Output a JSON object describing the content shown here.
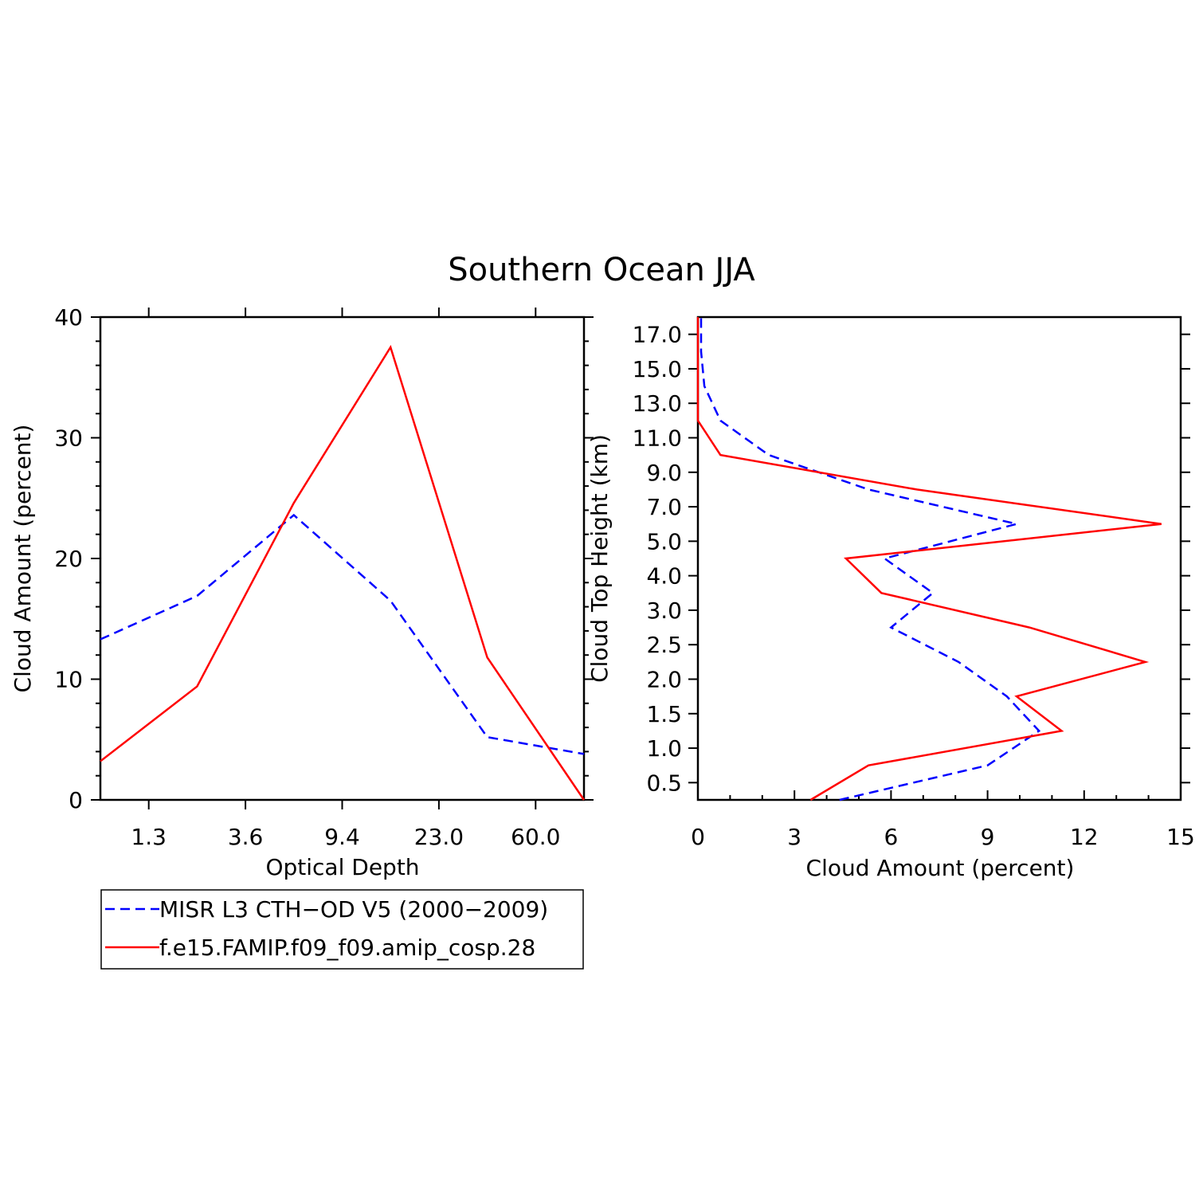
{
  "title": "Southern Ocean JJA",
  "colors": {
    "misr": "#0000ff",
    "model": "#ff0000"
  },
  "legend": {
    "items": [
      {
        "label": "MISR L3 CTH−OD V5 (2000−2009)",
        "color": "#0000ff",
        "style": "dashed"
      },
      {
        "label": "f.e15.FAMIP.f09_f09.amip_cosp.28",
        "color": "#ff0000",
        "style": "solid"
      }
    ]
  },
  "chart_data": [
    {
      "type": "line",
      "xlabel": "Optical Depth",
      "ylabel": "Cloud Amount (percent)",
      "ylim": [
        0,
        40
      ],
      "yticks": [
        "0",
        "10",
        "20",
        "30",
        "40"
      ],
      "x_categories": [
        "0.15",
        "1.3",
        "2.45",
        "3.6",
        "6.5",
        "9.4",
        "16.2",
        "23.0",
        "41.5",
        "60.0",
        "100.0"
      ],
      "xtick_labels": [
        "1.3",
        "3.6",
        "9.4",
        "23.0",
        "60.0"
      ],
      "series": [
        {
          "name": "MISR L3 CTH−OD V5 (2000−2009)",
          "color": "#0000ff",
          "dashed": true,
          "points": [
            [
              "0.15",
              13.3
            ],
            [
              "2.45",
              16.9
            ],
            [
              "6.5",
              23.6
            ],
            [
              "16.2",
              16.5
            ],
            [
              "41.5",
              5.2
            ],
            [
              "100.0",
              3.8
            ]
          ]
        },
        {
          "name": "f.e15.FAMIP.f09_f09.amip_cosp.28",
          "color": "#ff0000",
          "dashed": false,
          "points": [
            [
              "0.15",
              3.2
            ],
            [
              "2.45",
              9.4
            ],
            [
              "6.5",
              24.6
            ],
            [
              "16.2",
              37.5
            ],
            [
              "41.5",
              11.8
            ],
            [
              "100.0",
              0.0
            ]
          ]
        }
      ]
    },
    {
      "type": "line",
      "xlabel": "Cloud Amount (percent)",
      "ylabel": "Cloud Top Height (km)",
      "xlim": [
        0,
        15
      ],
      "xticks": [
        "0",
        "3",
        "6",
        "9",
        "12",
        "15"
      ],
      "height_levels": [
        "0.25",
        "0.5",
        "0.75",
        "1.0",
        "1.25",
        "1.5",
        "1.75",
        "2.0",
        "2.25",
        "2.5",
        "2.75",
        "3.0",
        "3.5",
        "4.0",
        "4.5",
        "5.0",
        "6.0",
        "7.0",
        "8.0",
        "9.0",
        "10.0",
        "11.0",
        "12.0",
        "13.0",
        "14.0",
        "15.0",
        "16.0",
        "17.0",
        "17.5"
      ],
      "ytick_labels": [
        "0.5",
        "1.0",
        "1.5",
        "2.0",
        "2.5",
        "3.0",
        "4.0",
        "5.0",
        "7.0",
        "9.0",
        "11.0",
        "13.0",
        "15.0",
        "17.0"
      ],
      "series": [
        {
          "name": "MISR L3 CTH−OD V5 (2000−2009)",
          "color": "#0000ff",
          "dashed": true,
          "points": [
            [
              4.4,
              "0.25"
            ],
            [
              9.0,
              "0.75"
            ],
            [
              10.6,
              "1.25"
            ],
            [
              9.6,
              "1.75"
            ],
            [
              8.1,
              "2.25"
            ],
            [
              6.0,
              "2.75"
            ],
            [
              7.3,
              "3.5"
            ],
            [
              5.8,
              "4.5"
            ],
            [
              9.9,
              "6.0"
            ],
            [
              5.3,
              "8.0"
            ],
            [
              2.2,
              "10.0"
            ],
            [
              0.7,
              "12.0"
            ],
            [
              0.2,
              "14.0"
            ],
            [
              0.1,
              "16.0"
            ],
            [
              0.1,
              "17.5"
            ]
          ]
        },
        {
          "name": "f.e15.FAMIP.f09_f09.amip_cosp.28",
          "color": "#ff0000",
          "dashed": false,
          "points": [
            [
              3.5,
              "0.25"
            ],
            [
              5.3,
              "0.75"
            ],
            [
              11.3,
              "1.25"
            ],
            [
              9.9,
              "1.75"
            ],
            [
              13.9,
              "2.25"
            ],
            [
              10.3,
              "2.75"
            ],
            [
              5.7,
              "3.5"
            ],
            [
              4.6,
              "4.5"
            ],
            [
              14.4,
              "6.0"
            ],
            [
              6.8,
              "8.0"
            ],
            [
              0.7,
              "10.0"
            ],
            [
              0.0,
              "12.0"
            ],
            [
              0.0,
              "14.0"
            ],
            [
              0.0,
              "16.0"
            ],
            [
              0.0,
              "17.5"
            ]
          ]
        }
      ]
    }
  ]
}
